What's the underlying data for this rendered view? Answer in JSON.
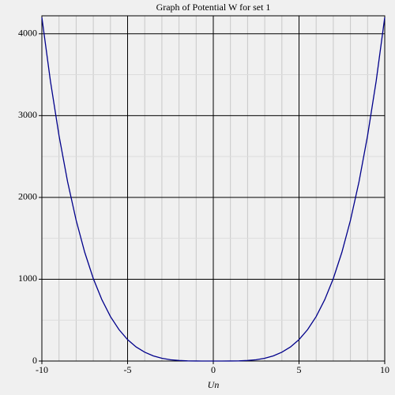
{
  "chart_data": {
    "type": "line",
    "title": "Graph of Potential W for set 1",
    "x_label": "Un",
    "x": [
      -10,
      -9.5,
      -9,
      -8.5,
      -8,
      -7.5,
      -7,
      -6.5,
      -6,
      -5.5,
      -5,
      -4.5,
      -4,
      -3.5,
      -3,
      -2.5,
      -2,
      -1.5,
      -1,
      -0.5,
      0,
      0.5,
      1,
      1.5,
      2,
      2.5,
      3,
      3.5,
      4,
      4.5,
      5,
      5.5,
      6,
      6.5,
      7,
      7.5,
      8,
      8.5,
      9,
      9.5,
      10
    ],
    "series": [
      {
        "name": "W",
        "color": "#00008b",
        "values": [
          4200,
          3421,
          2756,
          2192,
          1720,
          1329,
          1008,
          750,
          544,
          384,
          262,
          172,
          108,
          63,
          34,
          16,
          7,
          2,
          0.4,
          0.03,
          0,
          0.03,
          0.4,
          2,
          7,
          16,
          34,
          63,
          108,
          172,
          262,
          384,
          544,
          750,
          1008,
          1329,
          1720,
          2192,
          2756,
          3421,
          4200
        ]
      }
    ],
    "xlim": [
      -10,
      10
    ],
    "ylim": [
      0,
      4220
    ],
    "xticks": [
      -10,
      -5,
      0,
      5,
      10
    ],
    "yticks": [
      0,
      1000,
      2000,
      3000,
      4000
    ],
    "xticks_minor": [
      -9,
      -8,
      -7,
      -6,
      -4,
      -3,
      -2,
      -1,
      1,
      2,
      3,
      4,
      6,
      7,
      8,
      9
    ],
    "yticks_minor": [
      500,
      1500,
      2500,
      3500
    ],
    "grid": true
  }
}
